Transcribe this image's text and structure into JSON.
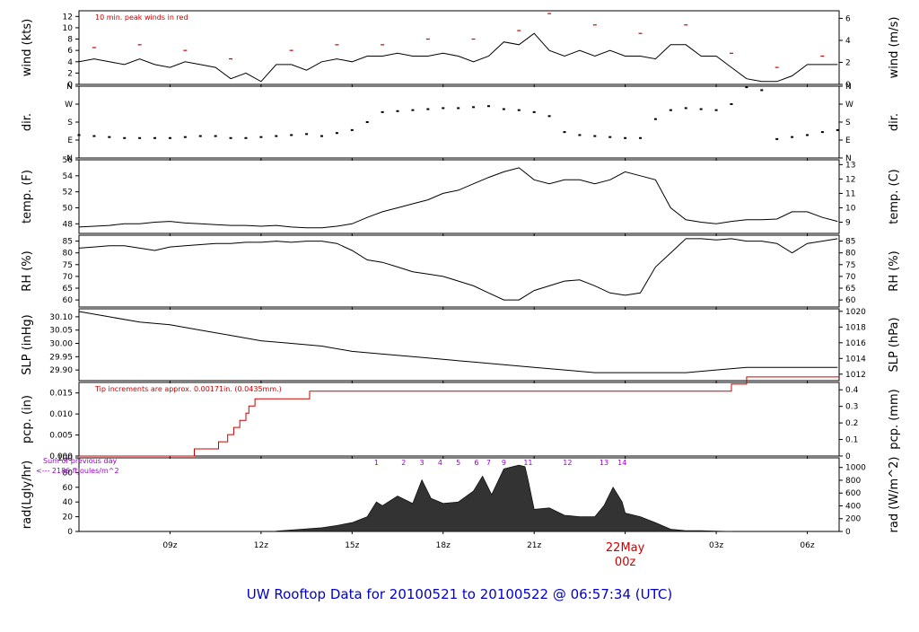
{
  "footer": {
    "title": "UW Rooftop Data for 20100521  to  20100522 @ 06:57:34  (UTC)",
    "date_marker": "22May",
    "date_marker_time": "00z"
  },
  "time_axis": {
    "range_hours": [
      6.0,
      31.05
    ],
    "ticks": [
      {
        "h": 9,
        "label": "09z"
      },
      {
        "h": 12,
        "label": "12z"
      },
      {
        "h": 15,
        "label": "15z"
      },
      {
        "h": 18,
        "label": "18z"
      },
      {
        "h": 21,
        "label": "21z"
      },
      {
        "h": 24,
        "label": "00z"
      },
      {
        "h": 27,
        "label": "03z"
      },
      {
        "h": 30,
        "label": "06z"
      }
    ]
  },
  "colors": {
    "line": "#000000",
    "peak": "#cc0000",
    "precip": "#cc0000",
    "note_purple": "#9900cc",
    "footer_blue": "#0000cc",
    "date_red": "#cc0000"
  },
  "chart_data": [
    {
      "id": "wind",
      "type": "line",
      "ylabel_left": "wind (kts)",
      "ylabel_right": "wind (m/s)",
      "ylim": [
        0,
        13
      ],
      "ticks_left": [
        "0",
        "2",
        "4",
        "6",
        "8",
        "10",
        "12"
      ],
      "ticks_right": [
        "0",
        "2",
        "4",
        "6"
      ],
      "annotation": "10 min. peak winds in red",
      "series": [
        {
          "name": "wind",
          "x": [
            6.0,
            6.5,
            7.0,
            7.5,
            8.0,
            8.5,
            9.0,
            9.5,
            10.0,
            10.5,
            11.0,
            11.5,
            12.0,
            12.5,
            13.0,
            13.5,
            14.0,
            14.5,
            15.0,
            15.5,
            16.0,
            16.5,
            17.0,
            17.5,
            18.0,
            18.5,
            19.0,
            19.5,
            20.0,
            20.5,
            21.0,
            21.5,
            22.0,
            22.5,
            23.0,
            23.5,
            24.0,
            24.5,
            25.0,
            25.5,
            26.0,
            26.5,
            27.0,
            27.5,
            28.0,
            28.5,
            29.0,
            29.5,
            30.0,
            30.5,
            31.0
          ],
          "y": [
            4,
            4.5,
            4,
            3.5,
            4.5,
            3.5,
            3,
            4,
            3.5,
            3,
            1,
            2,
            0.5,
            3.5,
            3.5,
            2.5,
            4,
            4.5,
            4,
            5,
            5,
            5.5,
            5,
            5,
            5.5,
            5,
            4,
            5,
            7.5,
            7,
            9,
            6,
            5,
            6,
            5,
            6,
            5,
            5,
            4.5,
            7,
            7,
            5,
            5,
            3,
            1,
            0.5,
            0.5,
            1.5,
            3.5,
            3.5,
            3.5
          ]
        },
        {
          "name": "10 min. peak",
          "x": [
            6.5,
            8,
            9.5,
            11,
            13,
            14.5,
            16,
            17.5,
            19,
            20.5,
            21.5,
            23,
            24.5,
            26,
            27.5,
            29,
            30.5
          ],
          "y": [
            6.5,
            7,
            6,
            4.5,
            6,
            7,
            7,
            8,
            8,
            9.5,
            12.5,
            10.5,
            9,
            10.5,
            5.5,
            3,
            5
          ]
        }
      ]
    },
    {
      "id": "dir",
      "type": "scatter",
      "ylabel_left": "dir.",
      "ylabel_right": "dir.",
      "ylim": [
        0,
        360
      ],
      "ticks_left": [
        "N",
        "E",
        "S",
        "W",
        "N"
      ],
      "ticks_right": [
        "N",
        "E",
        "S",
        "W",
        "N"
      ],
      "series": [
        {
          "name": "direction",
          "x": [
            6.0,
            6.5,
            7.0,
            7.5,
            8.0,
            8.5,
            9.0,
            9.5,
            10.0,
            10.5,
            11.0,
            11.5,
            12.0,
            12.5,
            13.0,
            13.5,
            14.0,
            14.5,
            15.0,
            15.5,
            16.0,
            16.5,
            17.0,
            17.5,
            18.0,
            18.5,
            19.0,
            19.5,
            20.0,
            20.5,
            21.0,
            21.5,
            22.0,
            22.5,
            23.0,
            23.5,
            24.0,
            24.5,
            25.0,
            25.5,
            26.0,
            26.5,
            27.0,
            27.5,
            28.0,
            28.5,
            29.0,
            29.5,
            30.0,
            30.5,
            31.0
          ],
          "y": [
            115,
            110,
            105,
            100,
            100,
            100,
            100,
            105,
            110,
            110,
            100,
            100,
            105,
            110,
            115,
            120,
            110,
            125,
            140,
            180,
            230,
            235,
            240,
            245,
            250,
            250,
            255,
            260,
            245,
            240,
            230,
            210,
            130,
            115,
            110,
            105,
            100,
            100,
            195,
            240,
            250,
            245,
            240,
            270,
            355,
            340,
            95,
            105,
            115,
            130,
            140
          ]
        }
      ]
    },
    {
      "id": "temp",
      "type": "line",
      "ylabel_left": "temp. (F)",
      "ylabel_right": "temp. (C)",
      "ylim": [
        46.8,
        56
      ],
      "ticks_left": [
        "48",
        "50",
        "52",
        "54",
        "56"
      ],
      "ticks_right": [
        "9",
        "10",
        "11",
        "12",
        "13"
      ],
      "series": [
        {
          "name": "temperature",
          "x": [
            6.0,
            6.5,
            7.0,
            7.5,
            8.0,
            8.5,
            9.0,
            9.5,
            10.0,
            10.5,
            11.0,
            11.5,
            12.0,
            12.5,
            13.0,
            13.5,
            14.0,
            14.5,
            15.0,
            15.5,
            16.0,
            16.5,
            17.0,
            17.5,
            18.0,
            18.5,
            19.0,
            19.5,
            20.0,
            20.5,
            21.0,
            21.5,
            22.0,
            22.5,
            23.0,
            23.5,
            24.0,
            24.5,
            25.0,
            25.5,
            26.0,
            26.5,
            27.0,
            27.5,
            28.0,
            28.5,
            29.0,
            29.5,
            30.0,
            30.5,
            31.0
          ],
          "y": [
            47.6,
            47.7,
            47.8,
            48.0,
            48.0,
            48.2,
            48.3,
            48.1,
            48.0,
            47.9,
            47.8,
            47.8,
            47.7,
            47.8,
            47.6,
            47.5,
            47.5,
            47.7,
            48.0,
            48.8,
            49.5,
            50.0,
            50.5,
            51.0,
            51.8,
            52.2,
            53.0,
            53.8,
            54.5,
            55.0,
            53.5,
            53.0,
            53.5,
            53.5,
            53.0,
            53.5,
            54.5,
            54.0,
            53.5,
            50.0,
            48.5,
            48.2,
            48.0,
            48.3,
            48.5,
            48.5,
            48.6,
            49.5,
            49.5,
            48.8,
            48.3
          ]
        }
      ]
    },
    {
      "id": "rh",
      "type": "line",
      "ylabel_left": "RH (%)",
      "ylabel_right": "RH (%)",
      "ylim": [
        57,
        87.5
      ],
      "ticks_left": [
        "60",
        "65",
        "70",
        "75",
        "80",
        "85"
      ],
      "ticks_right": [
        "60",
        "65",
        "70",
        "75",
        "80",
        "85"
      ],
      "series": [
        {
          "name": "relative humidity",
          "x": [
            6.0,
            6.5,
            7.0,
            7.5,
            8.0,
            8.5,
            9.0,
            9.5,
            10.0,
            10.5,
            11.0,
            11.5,
            12.0,
            12.5,
            13.0,
            13.5,
            14.0,
            14.5,
            15.0,
            15.5,
            16.0,
            16.5,
            17.0,
            17.5,
            18.0,
            18.5,
            19.0,
            19.5,
            20.0,
            20.5,
            21.0,
            21.5,
            22.0,
            22.5,
            23.0,
            23.5,
            24.0,
            24.5,
            25.0,
            25.5,
            26.0,
            26.5,
            27.0,
            27.5,
            28.0,
            28.5,
            29.0,
            29.5,
            30.0,
            30.5,
            31.0
          ],
          "y": [
            82,
            82.5,
            83,
            83,
            82,
            81,
            82.5,
            83,
            83.5,
            84,
            84,
            84.5,
            84.5,
            85,
            84.5,
            85,
            85,
            84,
            81,
            77,
            76,
            74,
            72,
            71,
            70,
            68,
            66,
            63,
            60,
            60,
            64,
            66,
            68,
            68.5,
            66,
            63,
            62,
            63,
            74,
            80,
            86,
            86,
            85.5,
            86,
            85,
            85,
            84,
            80,
            84,
            85,
            86
          ]
        }
      ]
    },
    {
      "id": "slp",
      "type": "line",
      "ylabel_left": "SLP (inHg)",
      "ylabel_right": "SLP (hPa)",
      "ylim": [
        29.86,
        30.13
      ],
      "ticks_left": [
        "29.90",
        "29.95",
        "30.00",
        "30.05",
        "30.10"
      ],
      "ticks_right": [
        "1012",
        "1014",
        "1016",
        "1018",
        "1020"
      ],
      "series": [
        {
          "name": "sea level pressure",
          "x": [
            6.0,
            7.0,
            8.0,
            9.0,
            10.0,
            11.0,
            12.0,
            13.0,
            14.0,
            15.0,
            16.0,
            17.0,
            18.0,
            19.0,
            20.0,
            21.0,
            22.0,
            23.0,
            24.0,
            25.0,
            26.0,
            27.0,
            28.0,
            29.0,
            30.0,
            31.0
          ],
          "y": [
            30.12,
            30.1,
            30.08,
            30.07,
            30.05,
            30.03,
            30.01,
            30.0,
            29.99,
            29.97,
            29.96,
            29.95,
            29.94,
            29.93,
            29.92,
            29.91,
            29.9,
            29.89,
            29.89,
            29.89,
            29.89,
            29.9,
            29.91,
            29.91,
            29.91,
            29.91
          ]
        }
      ]
    },
    {
      "id": "pcp",
      "type": "line",
      "ylabel_left": "pcp. (in)",
      "ylabel_right": "pcp. (mm)",
      "ylim": [
        0,
        0.0175
      ],
      "ticks_left": [
        "0.000",
        "0.005",
        "0.010",
        "0.015"
      ],
      "ticks_right": [
        "0",
        "0.1",
        "0.2",
        "0.3",
        "0.4"
      ],
      "annotation": "Tip increments are approx. 0.00171in. (0.0435mm.)",
      "series": [
        {
          "name": "cumulative precipitation",
          "x": [
            6.0,
            9.0,
            9.8,
            10.6,
            10.9,
            11.1,
            11.3,
            11.5,
            11.6,
            11.7,
            11.8,
            12.0,
            13.0,
            13.6,
            14.0,
            20.0,
            26.0,
            26.5,
            27.4,
            27.5,
            27.9,
            28.0,
            31.05
          ],
          "y": [
            0,
            0,
            0.0017,
            0.0034,
            0.0051,
            0.0068,
            0.0085,
            0.0102,
            0.0119,
            0.0119,
            0.0136,
            0.0136,
            0.0136,
            0.0154,
            0.0154,
            0.0154,
            0.0154,
            0.0154,
            0.0154,
            0.0171,
            0.0171,
            0.0188,
            0.0188
          ]
        }
      ]
    },
    {
      "id": "rad",
      "type": "area",
      "ylabel_left": "rad(Lgly/hr)",
      "ylabel_right": "rad (W/m^2)",
      "ylim": [
        0,
        100
      ],
      "ticks_left": [
        "0",
        "20",
        "40",
        "60",
        "80",
        "100"
      ],
      "ticks_right": [
        "0",
        "200",
        "400",
        "600",
        "800",
        "1000"
      ],
      "note_lines": [
        "Sum of previous day",
        "<--- 2186 ftJoules/m^2"
      ],
      "hour_labels": [
        {
          "h": 15.8,
          "label": "1"
        },
        {
          "h": 16.7,
          "label": "2"
        },
        {
          "h": 17.3,
          "label": "3"
        },
        {
          "h": 17.9,
          "label": "4"
        },
        {
          "h": 18.5,
          "label": "5"
        },
        {
          "h": 19.1,
          "label": "6"
        },
        {
          "h": 19.5,
          "label": "7"
        },
        {
          "h": 20.0,
          "label": "9"
        },
        {
          "h": 20.8,
          "label": "11"
        },
        {
          "h": 22.1,
          "label": "12"
        },
        {
          "h": 23.3,
          "label": "13"
        },
        {
          "h": 23.9,
          "label": "14"
        }
      ],
      "series": [
        {
          "name": "radiation",
          "x": [
            12.5,
            13.0,
            14.0,
            14.5,
            15.0,
            15.5,
            15.8,
            16.0,
            16.5,
            17.0,
            17.3,
            17.6,
            18.0,
            18.5,
            19.0,
            19.3,
            19.6,
            20.0,
            20.3,
            20.5,
            20.7,
            20.8,
            21.0,
            21.5,
            22.0,
            22.5,
            23.0,
            23.3,
            23.6,
            23.9,
            24.0,
            24.5,
            25.0,
            25.5,
            26.0,
            26.5,
            27.0,
            27.5
          ],
          "y": [
            0.5,
            2,
            5,
            8,
            12,
            20,
            40,
            35,
            48,
            38,
            70,
            45,
            38,
            40,
            55,
            75,
            50,
            85,
            88,
            90,
            88,
            70,
            30,
            32,
            22,
            20,
            20,
            35,
            60,
            40,
            25,
            20,
            12,
            3,
            1,
            1,
            0.5,
            0
          ]
        }
      ]
    }
  ]
}
